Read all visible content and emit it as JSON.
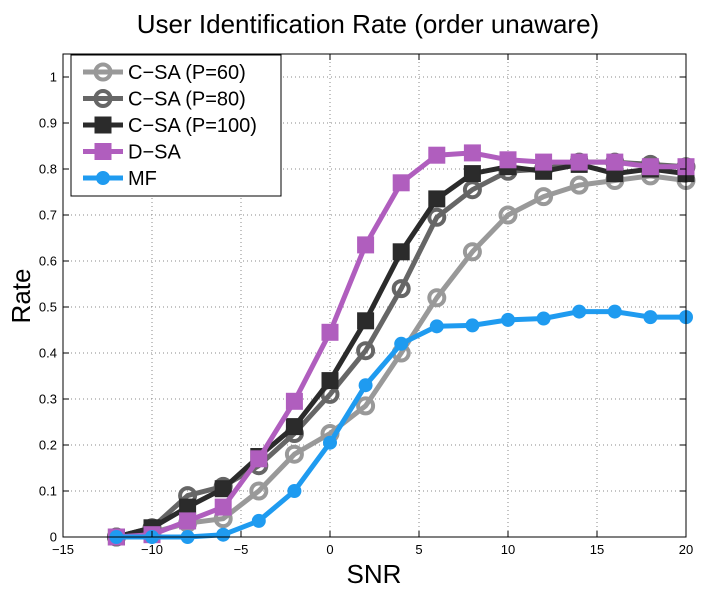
{
  "chart_data": {
    "type": "line",
    "title": "User Identification Rate (order unaware)",
    "xlabel": "SNR",
    "ylabel": "Rate",
    "xlim": [
      -15,
      20
    ],
    "ylim": [
      0,
      1.05
    ],
    "xticks": [
      -15,
      -10,
      -5,
      0,
      5,
      10,
      15,
      20
    ],
    "yticks": [
      0,
      0.1,
      0.2,
      0.3,
      0.4,
      0.5,
      0.6,
      0.7,
      0.8,
      0.9,
      1
    ],
    "grid": true,
    "legend_position": "top-left",
    "x": [
      -12,
      -10,
      -8,
      -6,
      -4,
      -2,
      0,
      2,
      4,
      6,
      8,
      10,
      12,
      14,
      16,
      18,
      20
    ],
    "series": [
      {
        "name": "C−SA (P=60)",
        "color": "#999999",
        "marker": "circle",
        "values": [
          0.0,
          0.01,
          0.03,
          0.04,
          0.1,
          0.18,
          0.225,
          0.285,
          0.4,
          0.52,
          0.62,
          0.7,
          0.74,
          0.765,
          0.775,
          0.785,
          0.775
        ]
      },
      {
        "name": "C−SA (P=80)",
        "color": "#666666",
        "marker": "circle",
        "values": [
          0.0,
          0.02,
          0.09,
          0.11,
          0.155,
          0.225,
          0.31,
          0.405,
          0.54,
          0.695,
          0.755,
          0.795,
          0.8,
          0.815,
          0.815,
          0.81,
          0.805
        ]
      },
      {
        "name": "C−SA (P=100)",
        "color": "#2b2b2b",
        "marker": "square",
        "values": [
          0.0,
          0.02,
          0.065,
          0.105,
          0.175,
          0.24,
          0.34,
          0.47,
          0.62,
          0.735,
          0.79,
          0.805,
          0.795,
          0.81,
          0.79,
          0.8,
          0.79
        ]
      },
      {
        "name": "D−SA",
        "color": "#b05ebe",
        "marker": "square",
        "values": [
          0.0,
          0.005,
          0.035,
          0.065,
          0.17,
          0.295,
          0.445,
          0.635,
          0.77,
          0.83,
          0.835,
          0.82,
          0.815,
          0.815,
          0.815,
          0.805,
          0.805
        ]
      },
      {
        "name": "MF",
        "color": "#1f9bf0",
        "marker": "circle",
        "values": [
          0.0,
          0.0,
          0.0,
          0.005,
          0.035,
          0.1,
          0.205,
          0.33,
          0.42,
          0.458,
          0.46,
          0.472,
          0.475,
          0.49,
          0.49,
          0.478,
          0.478
        ]
      }
    ]
  }
}
